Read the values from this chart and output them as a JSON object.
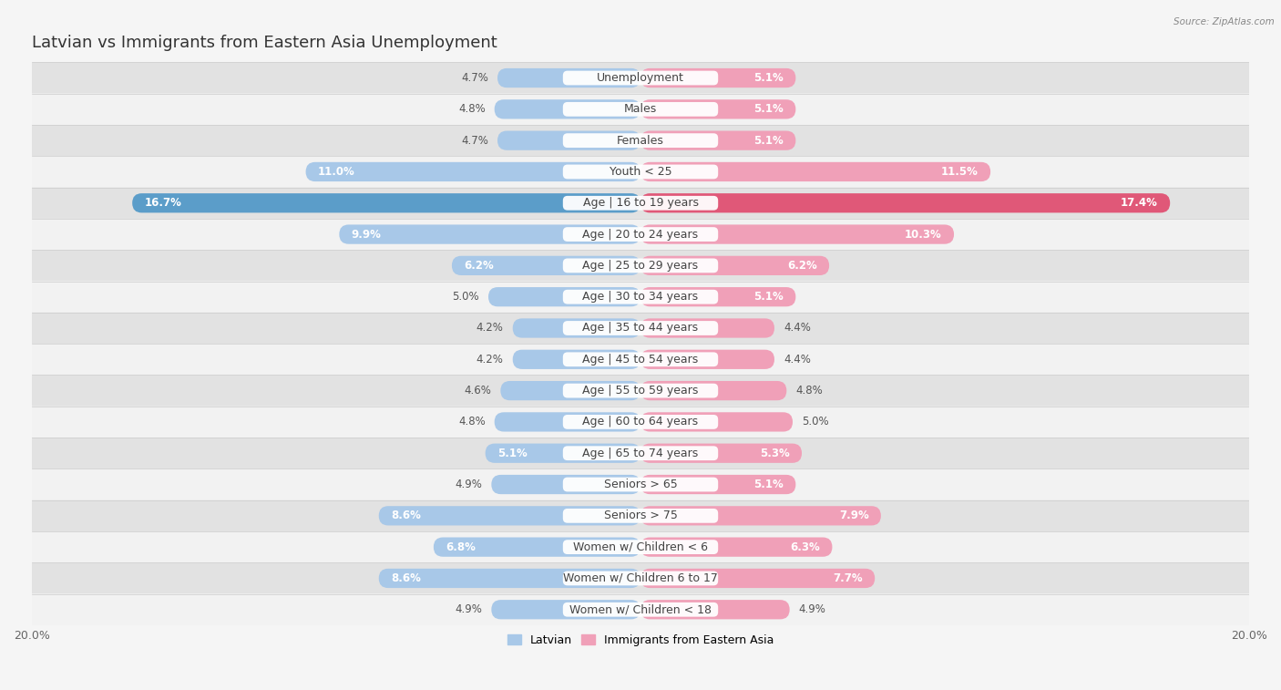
{
  "title": "Latvian vs Immigrants from Eastern Asia Unemployment",
  "source": "Source: ZipAtlas.com",
  "categories": [
    "Unemployment",
    "Males",
    "Females",
    "Youth < 25",
    "Age | 16 to 19 years",
    "Age | 20 to 24 years",
    "Age | 25 to 29 years",
    "Age | 30 to 34 years",
    "Age | 35 to 44 years",
    "Age | 45 to 54 years",
    "Age | 55 to 59 years",
    "Age | 60 to 64 years",
    "Age | 65 to 74 years",
    "Seniors > 65",
    "Seniors > 75",
    "Women w/ Children < 6",
    "Women w/ Children 6 to 17",
    "Women w/ Children < 18"
  ],
  "latvian": [
    4.7,
    4.8,
    4.7,
    11.0,
    16.7,
    9.9,
    6.2,
    5.0,
    4.2,
    4.2,
    4.6,
    4.8,
    5.1,
    4.9,
    8.6,
    6.8,
    8.6,
    4.9
  ],
  "immigrants": [
    5.1,
    5.1,
    5.1,
    11.5,
    17.4,
    10.3,
    6.2,
    5.1,
    4.4,
    4.4,
    4.8,
    5.0,
    5.3,
    5.1,
    7.9,
    6.3,
    7.7,
    4.9
  ],
  "latvian_color": "#a8c8e8",
  "immigrant_color": "#f0a0b8",
  "latvian_color_dark": "#5b9dc9",
  "immigrant_color_dark": "#e05878",
  "row_color_light": "#f2f2f2",
  "row_color_dark": "#e2e2e2",
  "fig_bg": "#f5f5f5",
  "axis_limit": 20.0,
  "legend_latvian": "Latvian",
  "legend_immigrant": "Immigrants from Eastern Asia",
  "title_fontsize": 13,
  "label_fontsize": 9,
  "value_fontsize": 8.5,
  "bar_height": 0.62
}
